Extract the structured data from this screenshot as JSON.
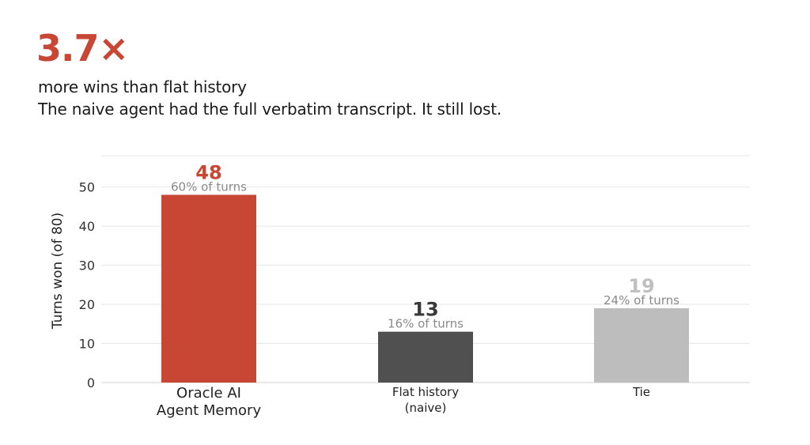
{
  "headline": "3.7×",
  "subtitle": "more wins than flat history",
  "description": "The naive agent had the full verbatim transcript. It still lost.",
  "chart_data": {
    "type": "bar",
    "categories": [
      [
        "Oracle AI",
        "Agent Memory"
      ],
      [
        "Flat history",
        "(naive)"
      ],
      [
        "Tie"
      ]
    ],
    "values": [
      48,
      13,
      19
    ],
    "value_labels": [
      "48",
      "13",
      "19"
    ],
    "share_labels": [
      "60% of turns",
      "16% of turns",
      "24% of turns"
    ],
    "bar_colors": [
      "#c74634",
      "#505050",
      "#bdbdbd"
    ],
    "value_label_colors": [
      "#c74634",
      "#3a3a3a",
      "#c0c0c0"
    ],
    "share_label_color": "#8a8a8a",
    "ylabel": "Turns won (of 80)",
    "xlabel": "",
    "ylim": [
      0,
      58
    ],
    "yticks": [
      0,
      10,
      20,
      30,
      40,
      50
    ],
    "grid": true
  }
}
